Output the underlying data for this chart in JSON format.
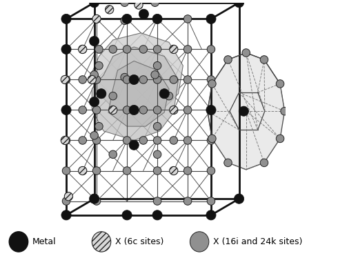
{
  "bg_color": "#ffffff",
  "fig_width": 4.9,
  "fig_height": 3.74,
  "dpi": 100,
  "metal_color": "#111111",
  "x6c_face": "#cccccc",
  "x6c_edge": "#111111",
  "x16i_color": "#909090",
  "x16i_edge": "#222222",
  "bond_color": "#444444",
  "cube_color": "#111111",
  "poly_face1": "#c0c0c0",
  "poly_face2": "#b0b0b0",
  "dod_face": "#dddddd",
  "legend_labels": [
    "Metal",
    "X (6c sites)",
    "X (16i and 24k sites)"
  ]
}
